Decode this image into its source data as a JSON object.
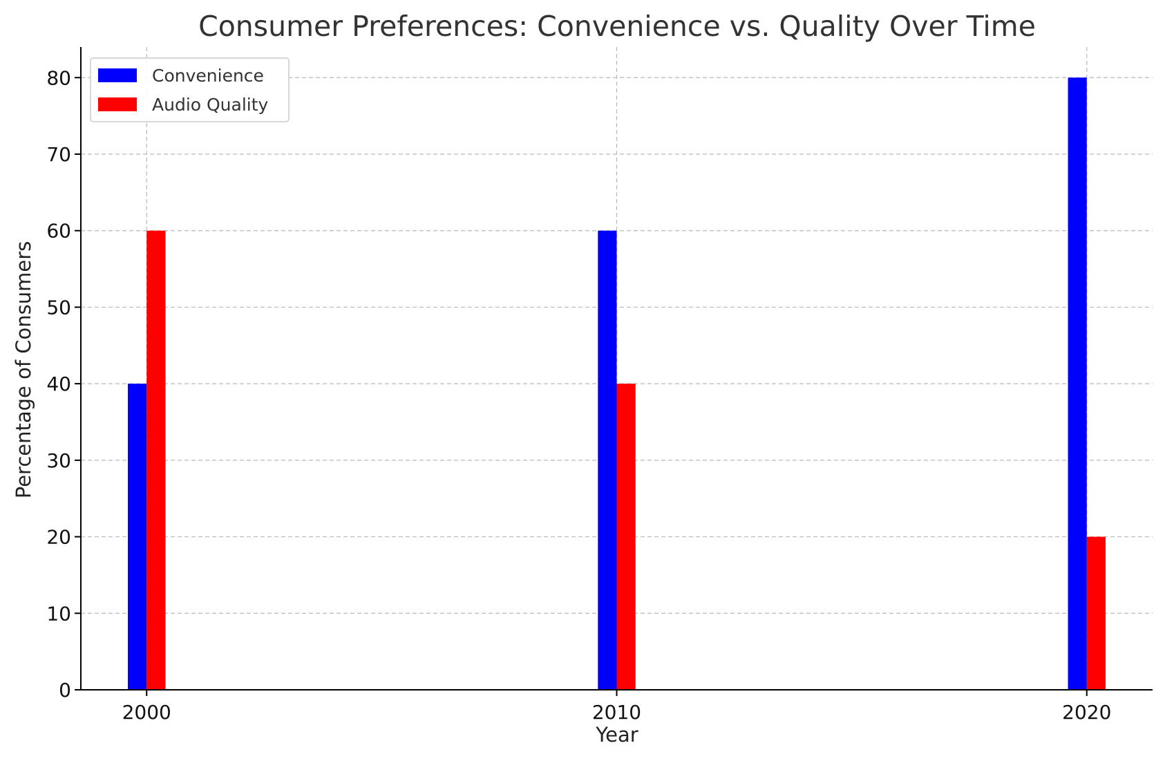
{
  "chart_data": {
    "type": "bar",
    "title": "Consumer Preferences: Convenience vs. Quality Over Time",
    "xlabel": "Year",
    "ylabel": "Percentage of Consumers",
    "categories": [
      "2000",
      "2010",
      "2020"
    ],
    "x": [
      2000,
      2010,
      2020
    ],
    "xlim": [
      1998.6,
      2021.4
    ],
    "ylim": [
      0,
      84
    ],
    "yticks": [
      0,
      10,
      20,
      30,
      40,
      50,
      60,
      70,
      80
    ],
    "series": [
      {
        "name": "Convenience",
        "color": "#0000ff",
        "values": [
          40,
          60,
          80
        ]
      },
      {
        "name": "Audio Quality",
        "color": "#ff0000",
        "values": [
          60,
          40,
          20
        ]
      }
    ],
    "bar_width_years": 0.4,
    "grid": true,
    "legend_position": "top-left"
  }
}
